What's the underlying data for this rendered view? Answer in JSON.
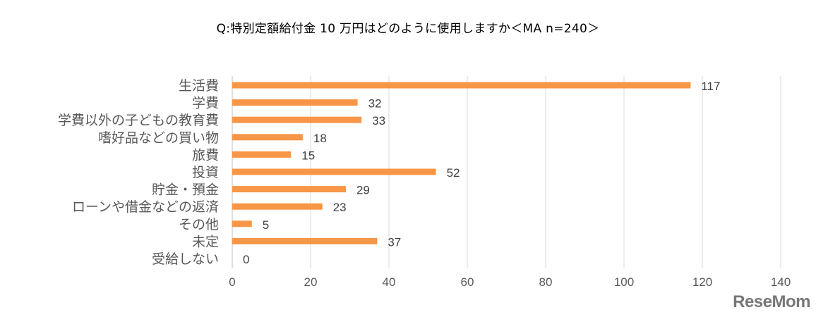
{
  "chart_data": {
    "type": "bar",
    "orientation": "horizontal",
    "title": "Q:特別定額給付金 10 万円はどのように使用しますか＜MA n=240＞",
    "categories": [
      "生活費",
      "学費",
      "学費以外の子どもの教育費",
      "嗜好品などの買い物",
      "旅費",
      "投資",
      "貯金・預金",
      "ローンや借金などの返済",
      "その他",
      "未定",
      "受給しない"
    ],
    "values": [
      117,
      32,
      33,
      18,
      15,
      52,
      29,
      23,
      5,
      37,
      0
    ],
    "xlim": [
      0,
      140
    ],
    "xticks": [
      0,
      20,
      40,
      60,
      80,
      100,
      120,
      140
    ],
    "grid": true,
    "bar_color": "#F79646",
    "xlabel": "",
    "ylabel": ""
  },
  "watermark": "ReseMom"
}
